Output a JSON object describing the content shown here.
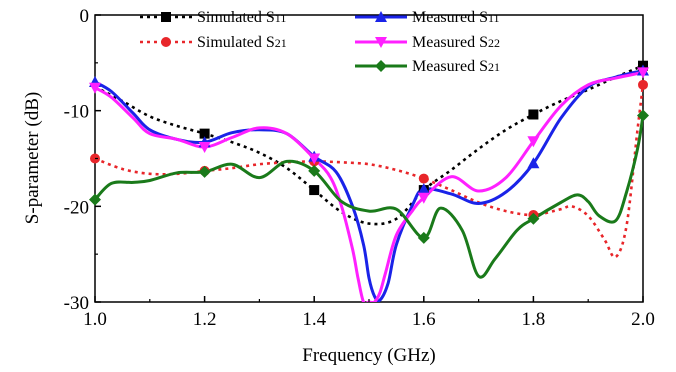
{
  "chart_data": {
    "type": "line",
    "xlabel": "Frequency (GHz)",
    "ylabel": "S-parameter (dB)",
    "xlim": [
      1.0,
      2.0
    ],
    "ylim": [
      -30,
      0
    ],
    "xticks": [
      "1.0",
      "1.2",
      "1.4",
      "1.6",
      "1.8",
      "2.0"
    ],
    "yticks": [
      "0",
      "-10",
      "-20",
      "-30"
    ],
    "legend_position": "top",
    "series": [
      {
        "name": "Simulated S11",
        "base": "Simulated S",
        "sub": "11",
        "color": "#000000",
        "dash": "3,4",
        "marker": "square",
        "x": [
          1.0,
          1.05,
          1.1,
          1.15,
          1.2,
          1.25,
          1.3,
          1.35,
          1.4,
          1.45,
          1.5,
          1.55,
          1.6,
          1.65,
          1.7,
          1.75,
          1.8,
          1.85,
          1.9,
          1.95,
          2.0
        ],
        "y": [
          -7.5,
          -9.0,
          -10.6,
          -11.6,
          -12.4,
          -13.3,
          -14.4,
          -16.0,
          -18.3,
          -20.6,
          -21.8,
          -21.3,
          -18.3,
          -16.2,
          -14.0,
          -12.0,
          -10.4,
          -9.0,
          -7.8,
          -6.5,
          -5.3
        ],
        "marker_x": [
          1.2,
          1.4,
          1.6,
          1.8,
          2.0
        ]
      },
      {
        "name": "Simulated S21",
        "base": "Simulated S",
        "sub": "21",
        "color": "#e8262a",
        "dash": "3,4",
        "marker": "circle",
        "x": [
          1.0,
          1.05,
          1.1,
          1.15,
          1.2,
          1.25,
          1.3,
          1.35,
          1.4,
          1.45,
          1.5,
          1.55,
          1.6,
          1.65,
          1.7,
          1.75,
          1.8,
          1.85,
          1.87,
          1.9,
          1.93,
          1.95,
          1.97,
          1.99,
          2.0
        ],
        "y": [
          -15.0,
          -16.1,
          -16.6,
          -16.6,
          -16.3,
          -16.0,
          -15.6,
          -15.4,
          -15.3,
          -15.4,
          -15.6,
          -16.2,
          -17.1,
          -18.3,
          -19.6,
          -20.5,
          -20.9,
          -20.3,
          -20.0,
          -21.0,
          -23.5,
          -25.3,
          -22.0,
          -12.0,
          -7.3
        ],
        "marker_x": [
          1.0,
          1.2,
          1.4,
          1.6,
          1.8,
          2.0
        ]
      },
      {
        "name": "Measured S11",
        "base": "Measured S",
        "sub": "11",
        "color": "#1a23e8",
        "dash": "",
        "marker": "triangle",
        "x": [
          1.0,
          1.03,
          1.07,
          1.1,
          1.15,
          1.2,
          1.25,
          1.3,
          1.35,
          1.4,
          1.44,
          1.47,
          1.49,
          1.5,
          1.51,
          1.52,
          1.535,
          1.55,
          1.58,
          1.6,
          1.65,
          1.7,
          1.75,
          1.8,
          1.85,
          1.9,
          1.95,
          2.0
        ],
        "y": [
          -7.0,
          -8.0,
          -10.3,
          -12.0,
          -13.0,
          -13.3,
          -12.3,
          -12.0,
          -12.4,
          -14.8,
          -16.4,
          -20.0,
          -24.0,
          -27.5,
          -29.4,
          -29.8,
          -28.0,
          -24.0,
          -19.8,
          -18.2,
          -18.7,
          -19.7,
          -18.5,
          -15.5,
          -10.8,
          -7.5,
          -6.5,
          -5.8
        ],
        "marker_x": [
          1.0,
          1.2,
          1.4,
          1.6,
          1.8,
          2.0
        ]
      },
      {
        "name": "Measured S22",
        "base": "Measured S",
        "sub": "22",
        "color": "#ff20ff",
        "dash": "",
        "marker": "inv-triangle",
        "x": [
          1.0,
          1.03,
          1.07,
          1.1,
          1.15,
          1.2,
          1.25,
          1.3,
          1.35,
          1.4,
          1.43,
          1.45,
          1.47,
          1.48,
          1.49,
          1.5,
          1.51,
          1.52,
          1.53,
          1.55,
          1.58,
          1.6,
          1.65,
          1.7,
          1.75,
          1.8,
          1.85,
          1.9,
          1.95,
          2.0
        ],
        "y": [
          -7.6,
          -8.6,
          -10.8,
          -12.4,
          -13.0,
          -13.8,
          -12.8,
          -11.8,
          -12.4,
          -15.0,
          -17.0,
          -20.0,
          -24.5,
          -27.5,
          -30.0,
          -30.0,
          -30.0,
          -29.0,
          -27.0,
          -23.0,
          -20.4,
          -19.1,
          -16.9,
          -18.4,
          -17.0,
          -13.2,
          -9.5,
          -7.3,
          -6.6,
          -6.0
        ],
        "marker_x": [
          1.0,
          1.2,
          1.4,
          1.6,
          1.8,
          2.0
        ]
      },
      {
        "name": "Measured S21",
        "base": "Measured S",
        "sub": "21",
        "color": "#1a7a1a",
        "dash": "",
        "marker": "diamond",
        "x": [
          1.0,
          1.03,
          1.07,
          1.1,
          1.15,
          1.2,
          1.25,
          1.3,
          1.35,
          1.4,
          1.45,
          1.5,
          1.55,
          1.6,
          1.63,
          1.67,
          1.7,
          1.73,
          1.77,
          1.8,
          1.85,
          1.88,
          1.9,
          1.92,
          1.95,
          1.97,
          1.99,
          2.0
        ],
        "y": [
          -19.3,
          -17.6,
          -17.5,
          -17.3,
          -16.5,
          -16.4,
          -15.6,
          -17.0,
          -15.3,
          -16.3,
          -19.5,
          -20.5,
          -20.3,
          -23.3,
          -20.2,
          -22.5,
          -27.3,
          -25.5,
          -22.5,
          -21.3,
          -19.6,
          -18.8,
          -19.5,
          -21.0,
          -21.5,
          -18.5,
          -14.0,
          -10.5
        ],
        "marker_x": [
          1.0,
          1.2,
          1.4,
          1.6,
          1.8,
          2.0
        ]
      }
    ]
  }
}
